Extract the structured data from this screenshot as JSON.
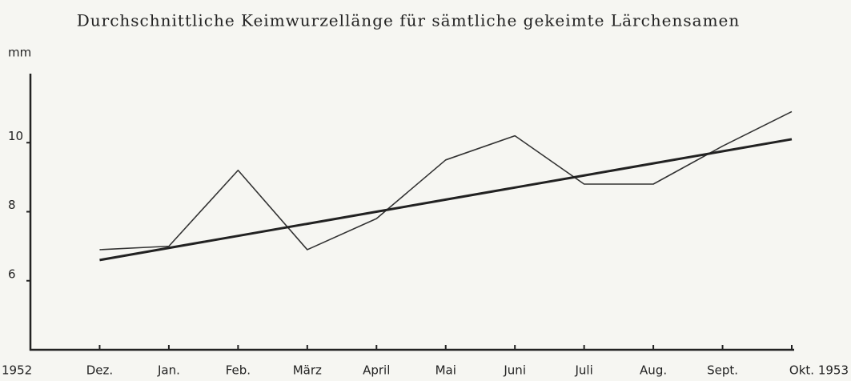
{
  "chart_data": {
    "type": "line",
    "title": "Durchschnittliche Keimwurzellänge für sämtliche gekeimte Lärchensamen",
    "y_label": "mm",
    "categories": [
      "1952",
      "Dez.",
      "Jan.",
      "Feb.",
      "März",
      "April",
      "Mai",
      "Juni",
      "Juli",
      "Aug.",
      "Sept.",
      "Okt. 1953"
    ],
    "series": [
      {
        "color": "#333333",
        "width": 1.6,
        "values": [
          null,
          6.9,
          7.0,
          9.2,
          6.9,
          7.8,
          9.5,
          10.2,
          8.8,
          8.8,
          9.9,
          10.9
        ]
      },
      {
        "color": "#222222",
        "width": 3,
        "values": [
          null,
          6.6,
          6.95,
          7.3,
          7.65,
          8.0,
          8.35,
          8.7,
          9.05,
          9.4,
          9.75,
          10.1
        ]
      }
    ],
    "ylim": [
      4,
      12
    ],
    "yticks": [
      6,
      8,
      10
    ],
    "grid": false
  }
}
